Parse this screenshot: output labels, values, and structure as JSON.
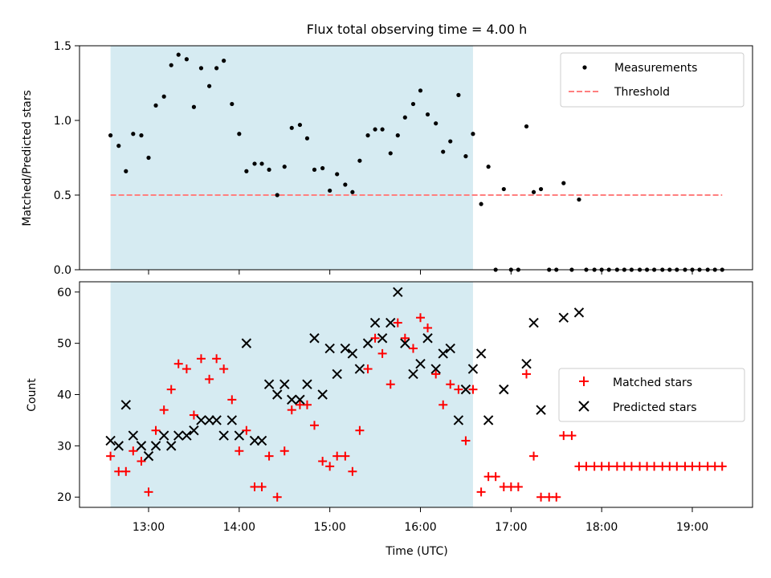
{
  "title": "Flux total observing time = 4.00 h",
  "xlabel": "Time (UTC)",
  "x_ticks": [
    "13:00",
    "14:00",
    "15:00",
    "16:00",
    "17:00",
    "18:00",
    "19:00"
  ],
  "x_tick_hours": [
    13,
    14,
    15,
    16,
    17,
    18,
    19
  ],
  "shaded_interval_hours": [
    12.58,
    16.58
  ],
  "colors": {
    "shade": "#add8e6",
    "measurement": "#000000",
    "threshold": "#ff7f7f",
    "matched": "#ff0000",
    "predicted": "#000000"
  },
  "chart_data": [
    {
      "type": "scatter",
      "ylabel": "Matched/Predicted stars",
      "ylim": [
        0,
        1.5
      ],
      "y_ticks": [
        "0.0",
        "0.5",
        "1.0",
        "1.5"
      ],
      "y_tick_values": [
        0,
        0.5,
        1.0,
        1.5
      ],
      "legend_position": "top-right",
      "legend": [
        "Measurements",
        "Threshold"
      ],
      "threshold": 0.5,
      "threshold_x_range": [
        12.58,
        19.33
      ],
      "series": [
        {
          "name": "Measurements",
          "x": [
            12.58,
            12.67,
            12.75,
            12.83,
            12.92,
            13.0,
            13.08,
            13.17,
            13.25,
            13.33,
            13.42,
            13.5,
            13.58,
            13.67,
            13.75,
            13.83,
            13.92,
            14.0,
            14.08,
            14.17,
            14.25,
            14.33,
            14.42,
            14.5,
            14.58,
            14.67,
            14.75,
            14.83,
            14.92,
            15.0,
            15.08,
            15.17,
            15.25,
            15.33,
            15.42,
            15.5,
            15.58,
            15.67,
            15.75,
            15.83,
            15.92,
            16.0,
            16.08,
            16.17,
            16.25,
            16.33,
            16.42,
            16.5,
            16.58,
            16.67,
            16.75,
            16.83,
            16.92,
            17.0,
            17.08,
            17.17,
            17.25,
            17.33,
            17.42,
            17.5,
            17.58,
            17.67,
            17.75,
            17.83,
            17.92,
            18.0,
            18.08,
            18.17,
            18.25,
            18.33,
            18.42,
            18.5,
            18.58,
            18.67,
            18.75,
            18.83,
            18.92,
            19.0,
            19.08,
            19.17,
            19.25,
            19.33
          ],
          "y": [
            0.9,
            0.83,
            0.66,
            0.91,
            0.9,
            0.75,
            1.1,
            1.16,
            1.37,
            1.44,
            1.41,
            1.09,
            1.35,
            1.23,
            1.35,
            1.4,
            1.11,
            0.91,
            0.66,
            0.71,
            0.71,
            0.67,
            0.5,
            0.69,
            0.95,
            0.97,
            0.88,
            0.67,
            0.68,
            0.53,
            0.64,
            0.57,
            0.52,
            0.73,
            0.9,
            0.94,
            0.94,
            0.78,
            0.9,
            1.02,
            1.11,
            1.2,
            1.04,
            0.98,
            0.79,
            0.86,
            1.17,
            0.76,
            0.91,
            0.44,
            0.69,
            0,
            0.54,
            0,
            0,
            0.96,
            0.52,
            0.54,
            0,
            0,
            0.58,
            0,
            0.47,
            0,
            0,
            0,
            0,
            0,
            0,
            0,
            0,
            0,
            0,
            0,
            0,
            0,
            0,
            0,
            0,
            0,
            0,
            0
          ]
        }
      ]
    },
    {
      "type": "scatter",
      "ylabel": "Count",
      "ylim": [
        18,
        62
      ],
      "y_ticks": [
        "20",
        "30",
        "40",
        "50",
        "60"
      ],
      "y_tick_values": [
        20,
        30,
        40,
        50,
        60
      ],
      "legend_position": "center-right",
      "legend": [
        "Matched stars",
        "Predicted stars"
      ],
      "series": [
        {
          "name": "Matched stars",
          "x": [
            12.58,
            12.67,
            12.75,
            12.83,
            12.92,
            13.0,
            13.08,
            13.17,
            13.25,
            13.33,
            13.42,
            13.5,
            13.58,
            13.67,
            13.75,
            13.83,
            13.92,
            14.0,
            14.08,
            14.17,
            14.25,
            14.33,
            14.42,
            14.5,
            14.58,
            14.67,
            14.75,
            14.83,
            14.92,
            15.0,
            15.08,
            15.17,
            15.25,
            15.33,
            15.42,
            15.5,
            15.58,
            15.67,
            15.75,
            15.83,
            15.92,
            16.0,
            16.08,
            16.17,
            16.25,
            16.33,
            16.42,
            16.5,
            16.58,
            16.67,
            16.75,
            16.83,
            16.92,
            17.0,
            17.08,
            17.17,
            17.25,
            17.33,
            17.42,
            17.5,
            17.58,
            17.67,
            17.75,
            17.83,
            17.92,
            18.0,
            18.08,
            18.17,
            18.25,
            18.33,
            18.42,
            18.5,
            18.58,
            18.67,
            18.75,
            18.83,
            18.92,
            19.0,
            19.08,
            19.17,
            19.25,
            19.33
          ],
          "y": [
            28,
            25,
            25,
            29,
            27,
            21,
            33,
            37,
            41,
            46,
            45,
            36,
            47,
            43,
            47,
            45,
            39,
            29,
            33,
            22,
            22,
            28,
            20,
            29,
            37,
            38,
            38,
            34,
            27,
            26,
            28,
            28,
            25,
            33,
            45,
            51,
            48,
            42,
            54,
            51,
            49,
            55,
            53,
            44,
            38,
            42,
            41,
            31,
            41,
            21,
            24,
            24,
            22,
            22,
            22,
            44,
            28,
            20,
            20,
            20,
            32,
            32,
            26,
            26,
            26,
            26,
            26,
            26,
            26,
            26,
            26,
            26,
            26,
            26,
            26,
            26,
            26,
            26,
            26,
            26,
            26,
            26
          ]
        },
        {
          "name": "Predicted stars",
          "x": [
            12.58,
            12.67,
            12.75,
            12.83,
            12.92,
            13.0,
            13.08,
            13.17,
            13.25,
            13.33,
            13.42,
            13.5,
            13.58,
            13.67,
            13.75,
            13.83,
            13.92,
            14.0,
            14.08,
            14.17,
            14.25,
            14.33,
            14.42,
            14.5,
            14.58,
            14.67,
            14.75,
            14.83,
            14.92,
            15.0,
            15.08,
            15.17,
            15.25,
            15.33,
            15.42,
            15.5,
            15.58,
            15.67,
            15.75,
            15.83,
            15.92,
            16.0,
            16.08,
            16.17,
            16.25,
            16.33,
            16.42,
            16.5,
            16.58,
            16.67,
            16.75,
            16.92,
            17.17,
            17.25,
            17.33,
            17.58,
            17.75
          ],
          "y": [
            31,
            30,
            38,
            32,
            30,
            28,
            30,
            32,
            30,
            32,
            32,
            33,
            35,
            35,
            35,
            32,
            35,
            32,
            50,
            31,
            31,
            42,
            40,
            42,
            39,
            39,
            42,
            51,
            40,
            49,
            44,
            49,
            48,
            45,
            50,
            54,
            51,
            54,
            60,
            50,
            44,
            46,
            51,
            45,
            48,
            49,
            35,
            41,
            45,
            48,
            35,
            41,
            46,
            54,
            37,
            55,
            56
          ]
        }
      ]
    }
  ]
}
